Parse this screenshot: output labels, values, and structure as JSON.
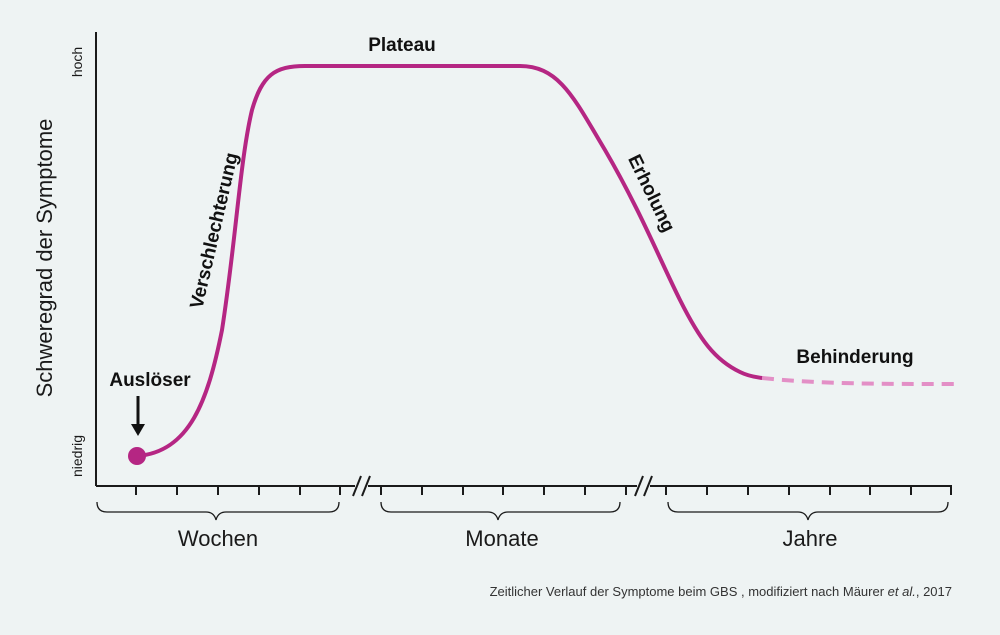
{
  "y_axis": {
    "title": "Schweregrad der Symptome",
    "high_label": "hoch",
    "low_label": "niedrig"
  },
  "x_axis": {
    "groups": [
      "Wochen",
      "Monate",
      "Jahre"
    ]
  },
  "phases": {
    "trigger": "Auslöser",
    "worsening": "Verschlechterung",
    "plateau": "Plateau",
    "recovery": "Erholung",
    "disability": "Behinderung"
  },
  "caption": {
    "text": "Zeitlicher Verlauf der Symptome beim GBS , modifiziert nach Mäurer ",
    "italic": "et al.",
    "year": ", 2017"
  },
  "colors": {
    "curve": "#b52683",
    "curve_dashed": "#e38fc6",
    "axis": "#1a1a1a",
    "background": "#eef3f3"
  }
}
